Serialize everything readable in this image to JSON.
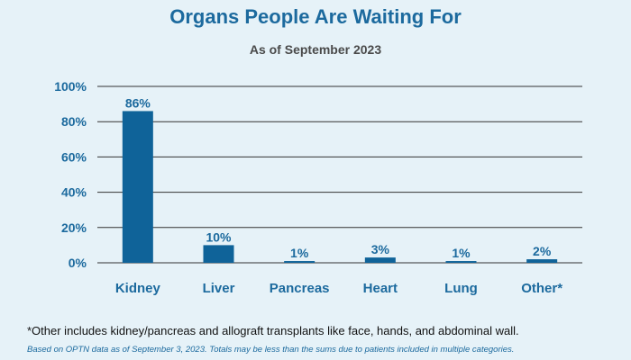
{
  "title": "Organs People Are Waiting For",
  "subtitle": "As of September 2023",
  "footnote": "*Other includes kidney/pancreas and allograft transplants like face, hands, and abdominal wall.",
  "source": "Based on OPTN data as of September 3, 2023. Totals may be less than the sums due to patients included in multiple categories.",
  "colors": {
    "bar": "#0f6399",
    "text": "#1c6a9e",
    "grid": "#333333",
    "background": "#e6f2f8"
  },
  "chart_data": {
    "type": "bar",
    "title": "Organs People Are Waiting For",
    "subtitle": "As of September 2023",
    "categories": [
      "Kidney",
      "Liver",
      "Pancreas",
      "Heart",
      "Lung",
      "Other*"
    ],
    "values": [
      86,
      10,
      1,
      3,
      1,
      2
    ],
    "data_labels": [
      "86%",
      "10%",
      "1%",
      "3%",
      "1%",
      "2%"
    ],
    "yticks": [
      "0%",
      "20%",
      "40%",
      "60%",
      "80%",
      "100%"
    ],
    "ylim": [
      0,
      100
    ],
    "xlabel": "",
    "ylabel": "",
    "grid": true,
    "legend": "none"
  }
}
